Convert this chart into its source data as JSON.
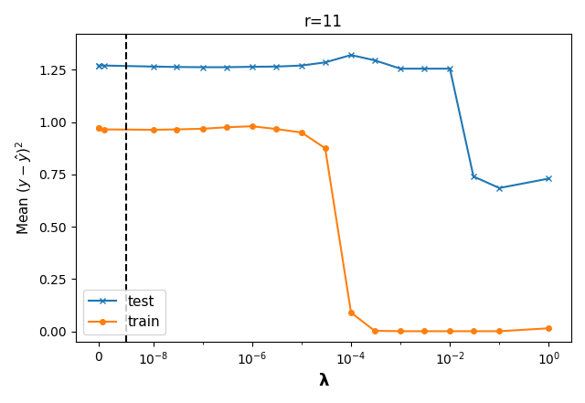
{
  "title": "r=11",
  "ylabel": "Mean $(y - \\hat{y})^2$",
  "test_x": [
    0,
    1e-10,
    1e-09,
    1e-08,
    3e-08,
    1e-07,
    3e-07,
    1e-06,
    3e-06,
    1e-05,
    3e-05,
    0.0001,
    0.0003,
    0.001,
    0.003,
    0.01,
    0.03,
    0.1,
    1.0
  ],
  "test_y": [
    1.27,
    1.27,
    1.27,
    1.265,
    1.263,
    1.262,
    1.262,
    1.264,
    1.265,
    1.27,
    1.285,
    1.32,
    1.295,
    1.255,
    1.255,
    1.255,
    0.74,
    0.685,
    0.73
  ],
  "train_x": [
    0,
    1e-10,
    1e-09,
    1e-08,
    3e-08,
    1e-07,
    3e-07,
    1e-06,
    3e-06,
    1e-05,
    3e-05,
    0.0001,
    0.0003,
    0.001,
    0.003,
    0.01,
    0.03,
    0.1,
    1.0
  ],
  "train_y": [
    0.97,
    0.97,
    0.965,
    0.963,
    0.965,
    0.968,
    0.975,
    0.98,
    0.967,
    0.95,
    0.875,
    0.09,
    0.003,
    0.001,
    0.001,
    0.001,
    0.001,
    0.001,
    0.015
  ],
  "vline_x": 5e-09,
  "test_color": "#1f77b4",
  "train_color": "#ff7f0e",
  "ylim": [
    -0.05,
    1.42
  ],
  "linthresh": 1e-08,
  "xticks": [
    0,
    1e-08,
    1e-06,
    0.0001,
    0.01,
    1.0
  ],
  "yticks": [
    0.0,
    0.25,
    0.5,
    0.75,
    1.0,
    1.25
  ],
  "background_color": "#ffffff",
  "legend_loc": "lower left",
  "legend_fontsize": 11,
  "title_fontsize": 12,
  "axis_fontsize": 12
}
